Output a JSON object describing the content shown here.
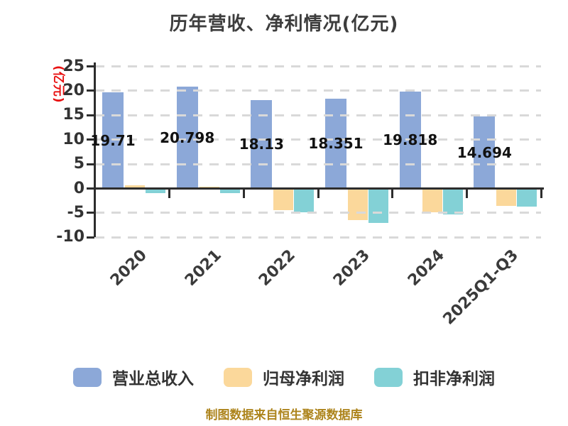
{
  "chart_data": {
    "type": "bar",
    "title": "历年营收、净利情况(亿元)",
    "ylabel": "(亿元)",
    "caption": "制图数据来自恒生聚源数据库",
    "categories": [
      "2020",
      "2021",
      "2022",
      "2023",
      "2024",
      "2025Q1-Q3"
    ],
    "series": [
      {
        "name": "营业总收入",
        "color": "#8CA8D8",
        "values": [
          19.71,
          20.798,
          18.13,
          18.351,
          19.818,
          14.694
        ],
        "data_labels": [
          "19.71",
          "20.798",
          "18.13",
          "18.351",
          "19.818",
          "14.694"
        ]
      },
      {
        "name": "归母净利润",
        "color": "#FBD89B",
        "values": [
          0.6,
          0.4,
          -4.4,
          -6.5,
          -4.8,
          -3.6
        ]
      },
      {
        "name": "扣非净利润",
        "color": "#83D1D6",
        "values": [
          -1.0,
          -0.9,
          -4.9,
          -7.0,
          -5.3,
          -3.7
        ]
      }
    ],
    "ylim": [
      -10,
      25
    ],
    "yticks": [
      25,
      20,
      15,
      10,
      5,
      0,
      -5,
      -10
    ],
    "grid": "horizontal-dashed",
    "legend_position": "bottom",
    "axis_label_color": "#e81010"
  }
}
